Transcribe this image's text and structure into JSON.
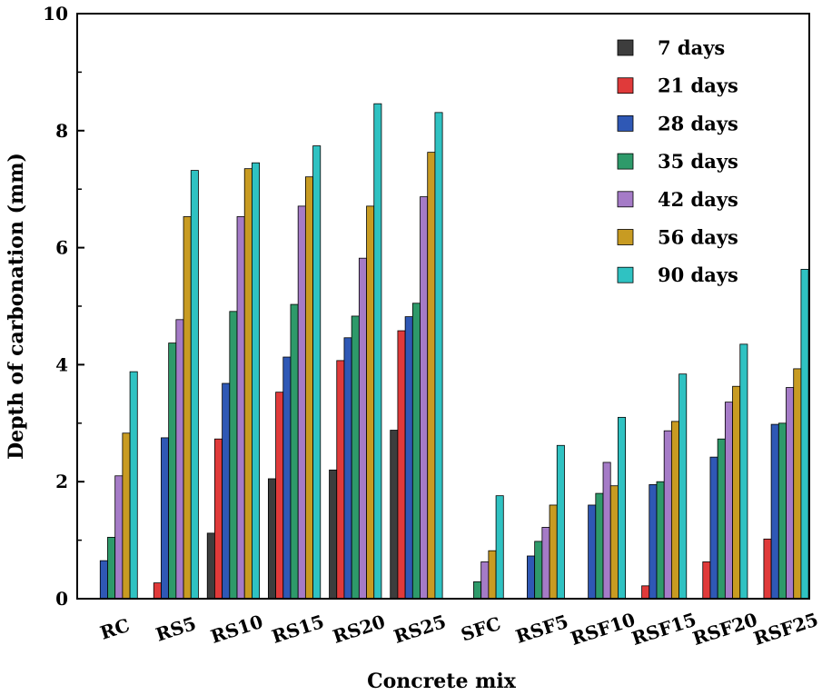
{
  "chart_data": {
    "type": "bar",
    "title": "",
    "xlabel": "Concrete mix",
    "ylabel": "Depth of carbonation (mm)",
    "ylim": [
      0,
      10
    ],
    "yticks": [
      "0",
      "2",
      "4",
      "6",
      "8",
      "10"
    ],
    "legend_position": "top-right",
    "categories": [
      "RC",
      "RS5",
      "RS10",
      "RS15",
      "RS20",
      "RS25",
      "SFC",
      "RSF5",
      "RSF10",
      "RSF15",
      "RSF20",
      "RSF25"
    ],
    "series": [
      {
        "name": "7 days",
        "color": "#3d3d3d",
        "values": [
          0,
          0,
          1.12,
          2.05,
          2.2,
          2.88,
          0,
          0,
          0,
          0,
          0,
          0
        ]
      },
      {
        "name": "21 days",
        "color": "#e03a3a",
        "values": [
          0,
          0.27,
          2.73,
          3.53,
          4.07,
          4.58,
          0,
          0,
          0,
          0.22,
          0.63,
          1.02
        ]
      },
      {
        "name": "28 days",
        "color": "#2f58b5",
        "values": [
          0.65,
          2.75,
          3.68,
          4.13,
          4.46,
          4.82,
          0,
          0.73,
          1.6,
          1.95,
          2.42,
          2.98
        ]
      },
      {
        "name": "35 days",
        "color": "#2e9a6a",
        "values": [
          1.05,
          4.37,
          4.91,
          5.03,
          4.83,
          5.05,
          0.29,
          0.98,
          1.8,
          2.0,
          2.73,
          3.0
        ]
      },
      {
        "name": "42 days",
        "color": "#a57bc7",
        "values": [
          2.1,
          4.77,
          6.53,
          6.71,
          5.82,
          6.87,
          0.63,
          1.22,
          2.33,
          2.87,
          3.36,
          3.61
        ]
      },
      {
        "name": "56 days",
        "color": "#c89b22",
        "values": [
          2.83,
          6.53,
          7.35,
          7.21,
          6.71,
          7.63,
          0.82,
          1.6,
          1.93,
          3.03,
          3.63,
          3.93
        ]
      },
      {
        "name": "90 days",
        "color": "#2fc2c2",
        "values": [
          3.88,
          7.32,
          7.45,
          7.74,
          8.46,
          8.31,
          1.76,
          2.62,
          3.1,
          3.84,
          4.35,
          5.63
        ]
      }
    ]
  }
}
